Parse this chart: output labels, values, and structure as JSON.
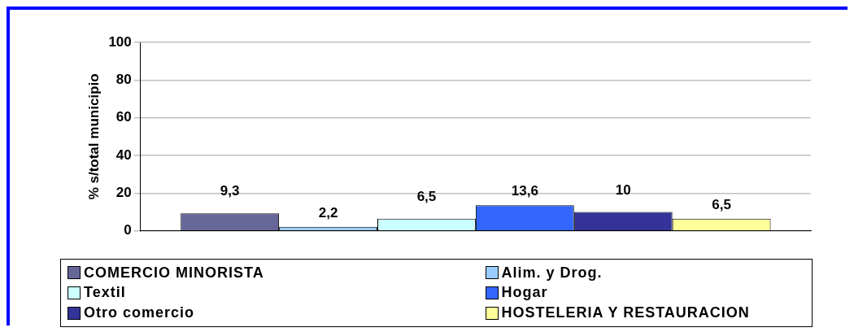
{
  "chart_data": {
    "type": "bar",
    "ylabel": "% s/total municipio",
    "categories": [
      null
    ],
    "ylim": [
      0,
      100
    ],
    "yticks": [
      0,
      20,
      40,
      60,
      80,
      100
    ],
    "grid": "y",
    "legend": "bottom",
    "series": [
      {
        "name": "COMERCIO MINORISTA",
        "color": "#666699",
        "values": [
          9.3
        ],
        "value_labels": [
          "9,3"
        ]
      },
      {
        "name": "Alim. y Drog.",
        "color": "#99ccff",
        "values": [
          2.2
        ],
        "value_labels": [
          "2,2"
        ]
      },
      {
        "name": "Textil",
        "color": "#ccffff",
        "values": [
          6.5
        ],
        "value_labels": [
          "6,5"
        ]
      },
      {
        "name": "Hogar",
        "color": "#3366ff",
        "values": [
          13.6
        ],
        "value_labels": [
          "13,6"
        ]
      },
      {
        "name": "Otro comercio",
        "color": "#333399",
        "values": [
          10
        ],
        "value_labels": [
          "10"
        ]
      },
      {
        "name": "HOSTELERIA Y RESTAURACION",
        "color": "#ffff99",
        "values": [
          6.5
        ],
        "value_labels": [
          "6,5"
        ]
      }
    ]
  }
}
